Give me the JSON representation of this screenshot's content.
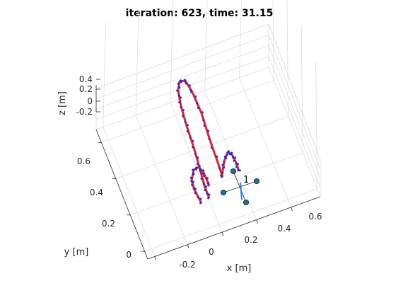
{
  "chart_data": {
    "type": "scatter",
    "title": "iteration: 623, time: 31.15",
    "xlabel": "x [m]",
    "ylabel": "y [m]",
    "zlabel": "z [m]",
    "x_ticks": [
      "-0.2",
      "0",
      "0.2",
      "0.4",
      "0.6"
    ],
    "y_ticks": [
      "0",
      "0.2",
      "0.4",
      "0.6"
    ],
    "z_ticks": [
      "0.4",
      "0.2",
      "0",
      "-0.2"
    ],
    "grid": true,
    "colors": {
      "trajectory": "#e8202a",
      "samples": "#1f2fd6",
      "drone_arms": "#1a1a8a",
      "drone_markers": "#1f6f9a"
    },
    "series": [
      {
        "name": "",
        "values": []
      },
      {
        "name": "",
        "values": []
      }
    ],
    "annotations": [
      {
        "text": "1"
      }
    ]
  }
}
